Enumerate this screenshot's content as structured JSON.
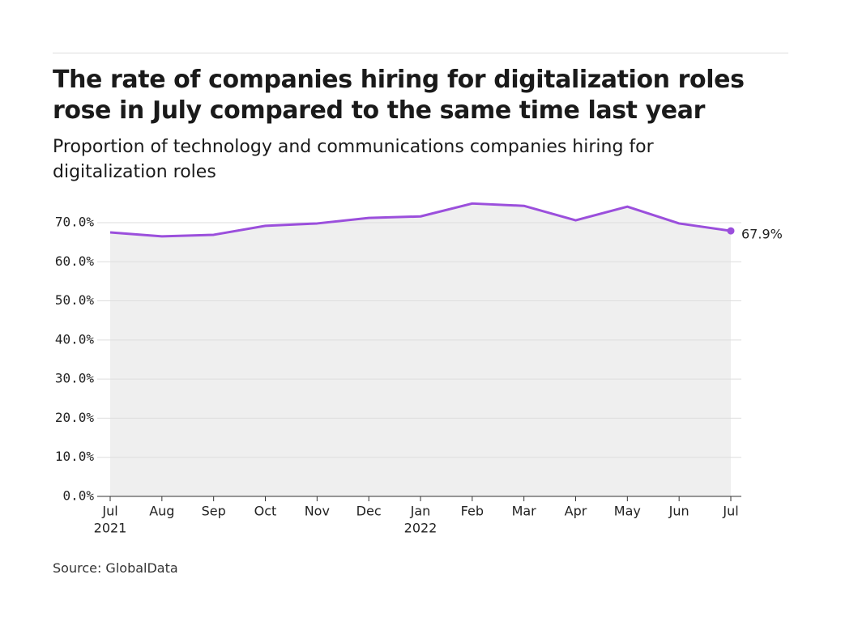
{
  "chart_data": {
    "type": "line",
    "title": "The rate of companies hiring for digitalization roles rose in July compared to the same time last year",
    "subtitle": "Proportion of technology and communications companies hiring for digitalization roles",
    "source": "Source: GlobalData",
    "categories": [
      "Jul",
      "Aug",
      "Sep",
      "Oct",
      "Nov",
      "Dec",
      "Jan",
      "Feb",
      "Mar",
      "Apr",
      "May",
      "Jun",
      "Jul"
    ],
    "year_labels": [
      "2021",
      null,
      null,
      null,
      null,
      null,
      "2022",
      null,
      null,
      null,
      null,
      null,
      null
    ],
    "values": [
      67.5,
      66.5,
      66.9,
      69.2,
      69.8,
      71.2,
      71.6,
      74.9,
      74.3,
      70.6,
      74.1,
      69.8,
      67.9
    ],
    "value_labels": [
      null,
      null,
      null,
      null,
      null,
      null,
      null,
      null,
      null,
      null,
      null,
      null,
      "67.9%"
    ],
    "color": "#9b4fdc",
    "ylim": [
      0,
      76
    ],
    "yticks": [
      {
        "value": 0,
        "label": "0.0%"
      },
      {
        "value": 10,
        "label": "10.0%"
      },
      {
        "value": 20,
        "label": "20.0%"
      },
      {
        "value": 30,
        "label": "30.0%"
      },
      {
        "value": 40,
        "label": "40.0%"
      },
      {
        "value": 50,
        "label": "50.0%"
      },
      {
        "value": 60,
        "label": "60.0%"
      },
      {
        "value": 70,
        "label": "70.0%"
      }
    ],
    "grid": true
  }
}
